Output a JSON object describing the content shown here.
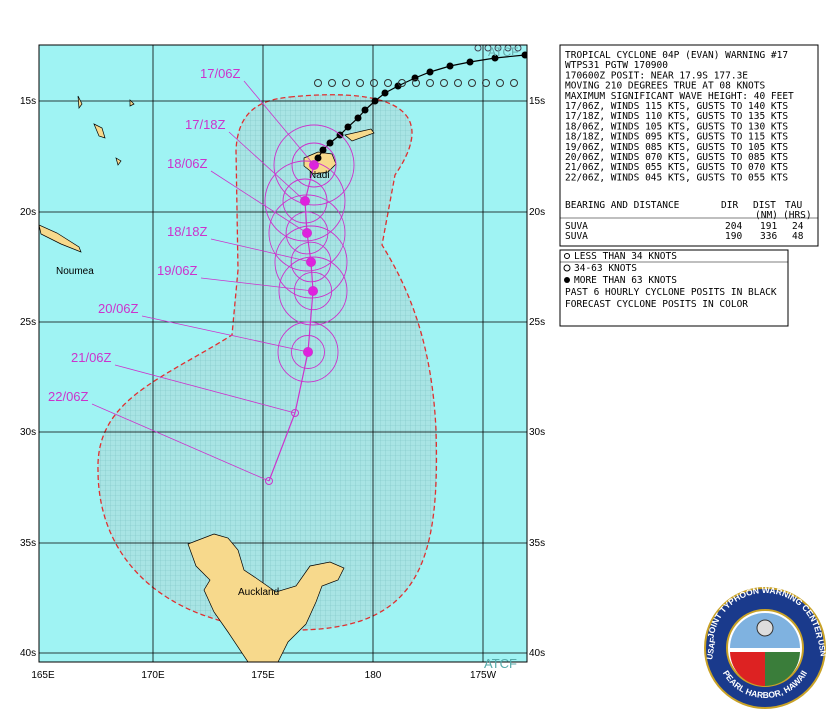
{
  "warning": {
    "lines": [
      "TROPICAL CYCLONE 04P (EVAN) WARNING #17",
      "WTPS31 PGTW 170900",
      "170600Z POSIT: NEAR 17.9S 177.3E",
      "MOVING 210 DEGREES TRUE AT 08 KNOTS",
      "MAXIMUM SIGNIFICANT WAVE HEIGHT: 40 FEET"
    ],
    "forecast": [
      "17/06Z, WINDS 115 KTS, GUSTS TO 140 KTS",
      "17/18Z, WINDS 110 KTS, GUSTS TO 135 KTS",
      "18/06Z, WINDS 105 KTS, GUSTS TO 130 KTS",
      "18/18Z, WINDS 095 KTS, GUSTS TO 115 KTS",
      "19/06Z, WINDS 085 KTS, GUSTS TO 105 KTS",
      "20/06Z, WINDS 070 KTS, GUSTS TO 085 KTS",
      "21/06Z, WINDS 055 KTS, GUSTS TO 070 KTS",
      "22/06Z, WINDS 045 KTS, GUSTS TO 055 KTS"
    ]
  },
  "table": {
    "header": [
      "BEARING AND DISTANCE",
      "DIR",
      "DIST",
      "TAU"
    ],
    "units": [
      "(NM)",
      "(HRS)"
    ],
    "rows": [
      [
        "SUVA",
        204,
        191,
        24
      ],
      [
        "SUVA",
        190,
        336,
        48
      ]
    ]
  },
  "legend": [
    "LESS THAN 34 KNOTS",
    "34-63 KNOTS",
    "MORE THAN 63 KNOTS",
    "PAST 6 HOURLY CYCLONE POSITS IN BLACK",
    "FORECAST CYCLONE POSITS IN COLOR"
  ],
  "map": {
    "lat_labels": [
      "15s",
      "20s",
      "25s",
      "30s",
      "35s",
      "40s"
    ],
    "lon_labels": [
      "165E",
      "170E",
      "175E",
      "180",
      "175W"
    ],
    "places": [
      "Nadi",
      "Noumea",
      "Auckland"
    ],
    "forecast_times": [
      "17/06Z",
      "17/18Z",
      "18/06Z",
      "18/18Z",
      "19/06Z",
      "20/06Z",
      "21/06Z",
      "22/06Z"
    ],
    "source": "ATCF"
  },
  "logo": {
    "ring_top": "JOINT TYPHOON WARNING CENTER",
    "ring_bottom": "PEARL HARBOR, HAWAII",
    "left": "USAF",
    "right": "USN"
  }
}
